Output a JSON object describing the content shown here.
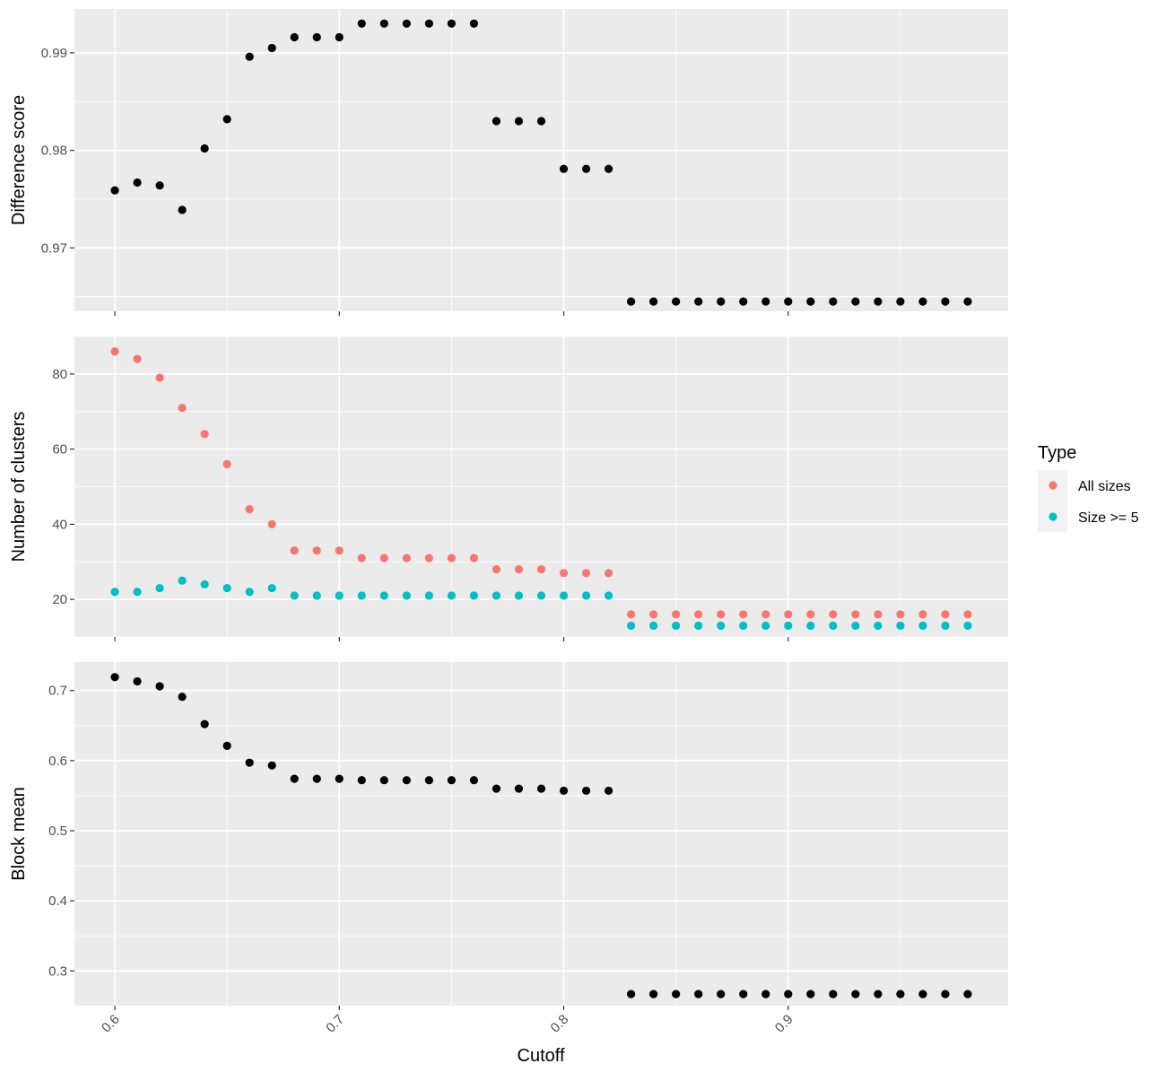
{
  "chart_data": [
    {
      "type": "scatter",
      "ylabel": "Difference score",
      "xlim": [
        0.582,
        0.998
      ],
      "ylim": [
        0.9635,
        0.9945
      ],
      "yticks": [
        0.97,
        0.98,
        0.99
      ],
      "ytick_labels": [
        "0.97",
        "0.98",
        "0.99"
      ],
      "series": [
        {
          "color": "#000000",
          "x": [
            0.6,
            0.61,
            0.62,
            0.63,
            0.64,
            0.65,
            0.66,
            0.67,
            0.68,
            0.69,
            0.7,
            0.71,
            0.72,
            0.73,
            0.74,
            0.75,
            0.76,
            0.77,
            0.78,
            0.79,
            0.8,
            0.81,
            0.82,
            0.83,
            0.84,
            0.85,
            0.86,
            0.87,
            0.88,
            0.89,
            0.9,
            0.91,
            0.92,
            0.93,
            0.94,
            0.95,
            0.96,
            0.97,
            0.98
          ],
          "y": [
            0.9759,
            0.9767,
            0.9764,
            0.9739,
            0.9802,
            0.9832,
            0.9896,
            0.9905,
            0.9916,
            0.9916,
            0.9916,
            0.993,
            0.993,
            0.993,
            0.993,
            0.993,
            0.993,
            0.983,
            0.983,
            0.983,
            0.9781,
            0.9781,
            0.9781,
            0.9645,
            0.9645,
            0.9645,
            0.9645,
            0.9645,
            0.9645,
            0.9645,
            0.9645,
            0.9645,
            0.9645,
            0.9645,
            0.9645,
            0.9645,
            0.9645,
            0.9645,
            0.9645
          ]
        }
      ]
    },
    {
      "type": "scatter",
      "ylabel": "Number of clusters",
      "xlim": [
        0.582,
        0.998
      ],
      "ylim": [
        10,
        90
      ],
      "yticks": [
        20,
        40,
        60,
        80
      ],
      "ytick_labels": [
        "20",
        "40",
        "60",
        "80"
      ],
      "legend": {
        "title": "Type",
        "position": "right"
      },
      "series": [
        {
          "name": "All sizes",
          "color": "#F8766D",
          "x": [
            0.6,
            0.61,
            0.62,
            0.63,
            0.64,
            0.65,
            0.66,
            0.67,
            0.68,
            0.69,
            0.7,
            0.71,
            0.72,
            0.73,
            0.74,
            0.75,
            0.76,
            0.77,
            0.78,
            0.79,
            0.8,
            0.81,
            0.82,
            0.83,
            0.84,
            0.85,
            0.86,
            0.87,
            0.88,
            0.89,
            0.9,
            0.91,
            0.92,
            0.93,
            0.94,
            0.95,
            0.96,
            0.97,
            0.98
          ],
          "y": [
            86,
            84,
            79,
            71,
            64,
            56,
            44,
            40,
            33,
            33,
            33,
            31,
            31,
            31,
            31,
            31,
            31,
            28,
            28,
            28,
            27,
            27,
            27,
            16,
            16,
            16,
            16,
            16,
            16,
            16,
            16,
            16,
            16,
            16,
            16,
            16,
            16,
            16,
            16
          ]
        },
        {
          "name": "Size >= 5",
          "color": "#00BFC4",
          "x": [
            0.6,
            0.61,
            0.62,
            0.63,
            0.64,
            0.65,
            0.66,
            0.67,
            0.68,
            0.69,
            0.7,
            0.71,
            0.72,
            0.73,
            0.74,
            0.75,
            0.76,
            0.77,
            0.78,
            0.79,
            0.8,
            0.81,
            0.82,
            0.83,
            0.84,
            0.85,
            0.86,
            0.87,
            0.88,
            0.89,
            0.9,
            0.91,
            0.92,
            0.93,
            0.94,
            0.95,
            0.96,
            0.97,
            0.98
          ],
          "y": [
            22,
            22,
            23,
            25,
            24,
            23,
            22,
            23,
            21,
            21,
            21,
            21,
            21,
            21,
            21,
            21,
            21,
            21,
            21,
            21,
            21,
            21,
            21,
            13,
            13,
            13,
            13,
            13,
            13,
            13,
            13,
            13,
            13,
            13,
            13,
            13,
            13,
            13,
            13
          ]
        }
      ]
    },
    {
      "type": "scatter",
      "ylabel": "Block mean",
      "xlabel": "Cutoff",
      "xlim": [
        0.582,
        0.998
      ],
      "ylim": [
        0.2505,
        0.7405
      ],
      "yticks": [
        0.3,
        0.4,
        0.5,
        0.6,
        0.7
      ],
      "ytick_labels": [
        "0.3",
        "0.4",
        "0.5",
        "0.6",
        "0.7"
      ],
      "xticks": [
        0.6,
        0.7,
        0.8,
        0.9
      ],
      "xtick_labels": [
        "0.6",
        "0.7",
        "0.8",
        "0.9"
      ],
      "series": [
        {
          "color": "#000000",
          "x": [
            0.6,
            0.61,
            0.62,
            0.63,
            0.64,
            0.65,
            0.66,
            0.67,
            0.68,
            0.69,
            0.7,
            0.71,
            0.72,
            0.73,
            0.74,
            0.75,
            0.76,
            0.77,
            0.78,
            0.79,
            0.8,
            0.81,
            0.82,
            0.83,
            0.84,
            0.85,
            0.86,
            0.87,
            0.88,
            0.89,
            0.9,
            0.91,
            0.92,
            0.93,
            0.94,
            0.95,
            0.96,
            0.97,
            0.98
          ],
          "y": [
            0.719,
            0.713,
            0.706,
            0.691,
            0.652,
            0.621,
            0.597,
            0.593,
            0.574,
            0.574,
            0.574,
            0.572,
            0.572,
            0.572,
            0.572,
            0.572,
            0.572,
            0.56,
            0.56,
            0.56,
            0.557,
            0.557,
            0.557,
            0.267,
            0.267,
            0.267,
            0.267,
            0.267,
            0.267,
            0.267,
            0.267,
            0.267,
            0.267,
            0.267,
            0.267,
            0.267,
            0.267,
            0.267,
            0.267
          ]
        }
      ]
    }
  ],
  "legend": {
    "title": "Type",
    "items": [
      {
        "label": "All sizes",
        "color": "#F8766D"
      },
      {
        "label": "Size >= 5",
        "color": "#00BFC4"
      }
    ]
  },
  "xlabel": "Cutoff",
  "style": {
    "panel_background": "#EBEBEB",
    "grid_color": "#FFFFFF",
    "axis_text_color": "#4D4D4D"
  }
}
